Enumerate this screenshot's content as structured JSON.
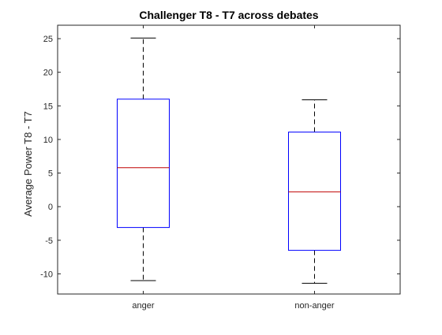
{
  "chart_data": {
    "type": "box",
    "title": "Challenger T8 - T7 across debates",
    "xlabel": "",
    "ylabel": "Average Power T8 - T7",
    "ylim": [
      -13,
      27
    ],
    "yticks": [
      -10,
      -5,
      0,
      5,
      10,
      15,
      20,
      25
    ],
    "grid": false,
    "categories": [
      "anger",
      "non-anger"
    ],
    "boxes": [
      {
        "category": "anger",
        "whisker_low": -11,
        "q1": -3.1,
        "median": 5.8,
        "q3": 16,
        "whisker_high": 25.1
      },
      {
        "category": "non-anger",
        "whisker_low": -11.4,
        "q1": -6.5,
        "median": 2.2,
        "q3": 11.1,
        "whisker_high": 15.9
      }
    ],
    "colors": {
      "box": "#0000ff",
      "median": "#c00000",
      "whisker": "#000000",
      "axes": "#262626"
    }
  }
}
